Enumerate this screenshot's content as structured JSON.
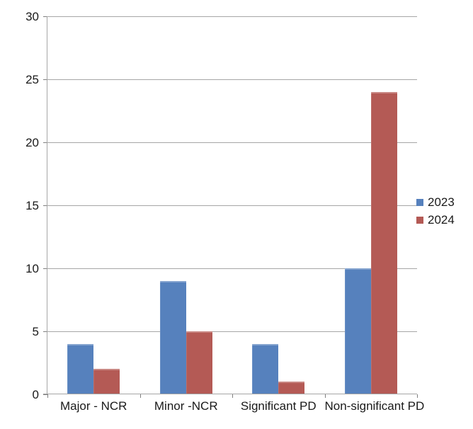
{
  "chart_data": {
    "type": "bar",
    "title": "",
    "xlabel": "",
    "ylabel": "",
    "categories": [
      "Major - NCR",
      "Minor -NCR",
      "Significant PD",
      "Non-significant PD"
    ],
    "series": [
      {
        "name": "2023",
        "color": "#5681BD",
        "values": [
          4,
          9,
          4,
          10
        ]
      },
      {
        "name": "2024",
        "color": "#B45A55",
        "values": [
          2,
          5,
          1,
          24
        ]
      }
    ],
    "ylim": [
      0,
      30
    ],
    "yticks": [
      0,
      5,
      10,
      15,
      20,
      25,
      30
    ],
    "grid": true,
    "legend_position": "right",
    "colors": {
      "gridline": "#A6A6A6",
      "axis": "#A6A6A6",
      "tick": "#7F7F7F",
      "text": "#1A1A1A",
      "background": "#FFFFFF"
    }
  }
}
